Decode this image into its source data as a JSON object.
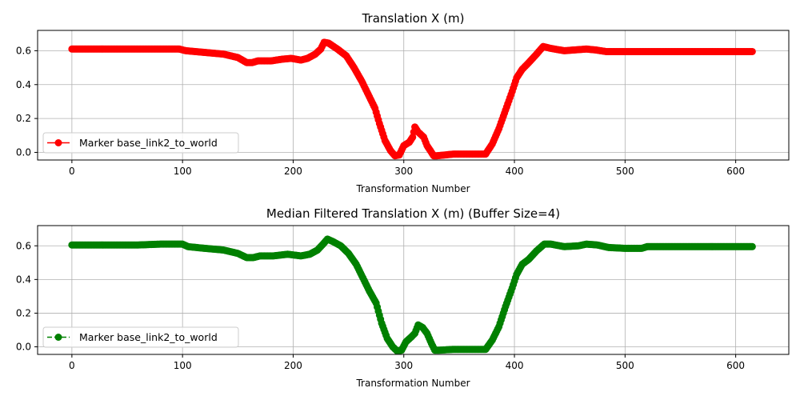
{
  "chart_data": [
    {
      "type": "line",
      "title": "Translation X (m)",
      "xlabel": "Transformation Number",
      "ylabel": "",
      "xlim": [
        -31,
        648
      ],
      "ylim": [
        -0.045,
        0.72
      ],
      "xticks": [
        0,
        100,
        200,
        300,
        400,
        500,
        600
      ],
      "yticks": [
        0.0,
        0.2,
        0.4,
        0.6
      ],
      "xtick_labels": [
        "0",
        "100",
        "200",
        "300",
        "400",
        "500",
        "600"
      ],
      "ytick_labels": [
        "0.0",
        "0.2",
        "0.4",
        "0.6"
      ],
      "grid": true,
      "legend_position": "lower left",
      "series": [
        {
          "name": "Marker base_link2_to_world",
          "color": "#ff0000",
          "line_style": "solid",
          "marker": "circle",
          "points": [
            [
              0,
              0.61
            ],
            [
              20,
              0.61
            ],
            [
              40,
              0.61
            ],
            [
              60,
              0.61
            ],
            [
              80,
              0.61
            ],
            [
              97,
              0.61
            ],
            [
              103,
              0.6
            ],
            [
              120,
              0.59
            ],
            [
              137,
              0.58
            ],
            [
              150,
              0.56
            ],
            [
              158,
              0.53
            ],
            [
              163,
              0.53
            ],
            [
              168,
              0.54
            ],
            [
              180,
              0.54
            ],
            [
              190,
              0.55
            ],
            [
              198,
              0.555
            ],
            [
              207,
              0.545
            ],
            [
              213,
              0.555
            ],
            [
              220,
              0.58
            ],
            [
              225,
              0.61
            ],
            [
              228,
              0.65
            ],
            [
              232,
              0.645
            ],
            [
              240,
              0.61
            ],
            [
              248,
              0.57
            ],
            [
              255,
              0.5
            ],
            [
              262,
              0.42
            ],
            [
              268,
              0.34
            ],
            [
              274,
              0.26
            ],
            [
              278,
              0.17
            ],
            [
              283,
              0.07
            ],
            [
              288,
              0.01
            ],
            [
              292,
              -0.02
            ],
            [
              296,
              -0.015
            ],
            [
              300,
              0.04
            ],
            [
              305,
              0.06
            ],
            [
              308,
              0.09
            ],
            [
              310,
              0.15
            ],
            [
              313,
              0.12
            ],
            [
              318,
              0.09
            ],
            [
              321,
              0.04
            ],
            [
              324,
              0.01
            ],
            [
              327,
              -0.02
            ],
            [
              330,
              -0.02
            ],
            [
              345,
              -0.01
            ],
            [
              360,
              -0.01
            ],
            [
              374,
              -0.01
            ],
            [
              380,
              0.05
            ],
            [
              386,
              0.14
            ],
            [
              392,
              0.25
            ],
            [
              398,
              0.36
            ],
            [
              402,
              0.44
            ],
            [
              407,
              0.49
            ],
            [
              413,
              0.53
            ],
            [
              420,
              0.58
            ],
            [
              426,
              0.625
            ],
            [
              432,
              0.615
            ],
            [
              445,
              0.6
            ],
            [
              455,
              0.605
            ],
            [
              465,
              0.61
            ],
            [
              473,
              0.605
            ],
            [
              483,
              0.595
            ],
            [
              500,
              0.595
            ],
            [
              550,
              0.595
            ],
            [
              600,
              0.595
            ],
            [
              615,
              0.595
            ]
          ]
        }
      ]
    },
    {
      "type": "line",
      "title": "Median Filtered Translation X (m) (Buffer Size=4)",
      "xlabel": "Transformation Number",
      "ylabel": "",
      "xlim": [
        -31,
        648
      ],
      "ylim": [
        -0.045,
        0.72
      ],
      "xticks": [
        0,
        100,
        200,
        300,
        400,
        500,
        600
      ],
      "yticks": [
        0.0,
        0.2,
        0.4,
        0.6
      ],
      "xtick_labels": [
        "0",
        "100",
        "200",
        "300",
        "400",
        "500",
        "600"
      ],
      "ytick_labels": [
        "0.0",
        "0.2",
        "0.4",
        "0.6"
      ],
      "grid": true,
      "legend_position": "lower left",
      "series": [
        {
          "name": "Marker base_link2_to_world",
          "color": "#008000",
          "line_style": "dashed",
          "marker": "circle",
          "points": [
            [
              0,
              0.605
            ],
            [
              20,
              0.605
            ],
            [
              40,
              0.605
            ],
            [
              60,
              0.605
            ],
            [
              80,
              0.61
            ],
            [
              100,
              0.61
            ],
            [
              105,
              0.595
            ],
            [
              120,
              0.585
            ],
            [
              137,
              0.575
            ],
            [
              150,
              0.555
            ],
            [
              158,
              0.53
            ],
            [
              164,
              0.53
            ],
            [
              170,
              0.54
            ],
            [
              182,
              0.54
            ],
            [
              195,
              0.55
            ],
            [
              207,
              0.54
            ],
            [
              215,
              0.55
            ],
            [
              222,
              0.575
            ],
            [
              227,
              0.61
            ],
            [
              231,
              0.64
            ],
            [
              236,
              0.625
            ],
            [
              243,
              0.6
            ],
            [
              250,
              0.555
            ],
            [
              257,
              0.49
            ],
            [
              263,
              0.41
            ],
            [
              269,
              0.33
            ],
            [
              275,
              0.26
            ],
            [
              280,
              0.14
            ],
            [
              285,
              0.05
            ],
            [
              290,
              0.0
            ],
            [
              294,
              -0.025
            ],
            [
              298,
              -0.02
            ],
            [
              302,
              0.03
            ],
            [
              307,
              0.06
            ],
            [
              310,
              0.08
            ],
            [
              313,
              0.13
            ],
            [
              317,
              0.115
            ],
            [
              321,
              0.08
            ],
            [
              325,
              0.02
            ],
            [
              328,
              -0.02
            ],
            [
              332,
              -0.02
            ],
            [
              345,
              -0.015
            ],
            [
              360,
              -0.015
            ],
            [
              374,
              -0.015
            ],
            [
              380,
              0.04
            ],
            [
              386,
              0.12
            ],
            [
              392,
              0.24
            ],
            [
              398,
              0.35
            ],
            [
              402,
              0.43
            ],
            [
              407,
              0.49
            ],
            [
              413,
              0.52
            ],
            [
              420,
              0.57
            ],
            [
              427,
              0.61
            ],
            [
              433,
              0.61
            ],
            [
              445,
              0.595
            ],
            [
              458,
              0.6
            ],
            [
              465,
              0.61
            ],
            [
              475,
              0.605
            ],
            [
              485,
              0.59
            ],
            [
              500,
              0.585
            ],
            [
              515,
              0.585
            ],
            [
              520,
              0.595
            ],
            [
              530,
              0.595
            ],
            [
              560,
              0.595
            ],
            [
              600,
              0.595
            ],
            [
              615,
              0.595
            ]
          ]
        }
      ]
    }
  ]
}
